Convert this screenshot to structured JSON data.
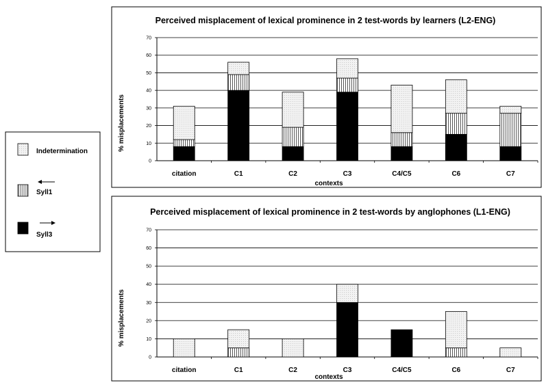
{
  "legend": {
    "items": [
      {
        "name": "Indetermination",
        "pattern": "dotted",
        "arrow": "none"
      },
      {
        "name": "Syll1",
        "pattern": "vstripe",
        "arrow": "left"
      },
      {
        "name": "Syll3",
        "pattern": "solid",
        "arrow": "right"
      }
    ]
  },
  "colors": {
    "syll3": "#000000",
    "indetermination": "#f0f0f0",
    "syll1_stripe": "#555555",
    "grid": "#000000"
  },
  "chart_data": [
    {
      "type": "bar",
      "stacked": true,
      "title": "Perceived misplacement of lexical prominence in 2 test-words by learners (L2-ENG)",
      "xlabel": "contexts",
      "ylabel": "% misplacements",
      "ylim": [
        0,
        70
      ],
      "yticks": [
        "0",
        "10",
        "20",
        "30",
        "40",
        "50",
        "60",
        "70"
      ],
      "grid": true,
      "categories": [
        "citation",
        "C1",
        "C2",
        "C3",
        "C4/C5",
        "C6",
        "C7"
      ],
      "series": [
        {
          "name": "Syll3",
          "values": [
            8,
            40,
            8,
            39,
            8,
            15,
            8
          ]
        },
        {
          "name": "Syll1",
          "values": [
            4,
            9,
            11,
            8,
            8,
            12,
            19
          ]
        },
        {
          "name": "Indetermination",
          "values": [
            19,
            7,
            20,
            11,
            27,
            19,
            4
          ]
        }
      ]
    },
    {
      "type": "bar",
      "stacked": true,
      "title": "Perceived misplacement of lexical prominence in 2 test-words by anglophones (L1-ENG)",
      "xlabel": "contexts",
      "ylabel": "% misplacements",
      "ylim": [
        0,
        70
      ],
      "yticks": [
        "0",
        "10",
        "20",
        "30",
        "40",
        "50",
        "60",
        "70"
      ],
      "grid": true,
      "categories": [
        "citation",
        "C1",
        "C2",
        "C3",
        "C4/C5",
        "C6",
        "C7"
      ],
      "series": [
        {
          "name": "Syll3",
          "values": [
            0,
            0,
            0,
            30,
            15,
            0,
            0
          ]
        },
        {
          "name": "Syll1",
          "values": [
            0,
            5,
            0,
            0,
            0,
            5,
            0
          ]
        },
        {
          "name": "Indetermination",
          "values": [
            10,
            10,
            10,
            10,
            0,
            20,
            5
          ]
        }
      ]
    }
  ]
}
